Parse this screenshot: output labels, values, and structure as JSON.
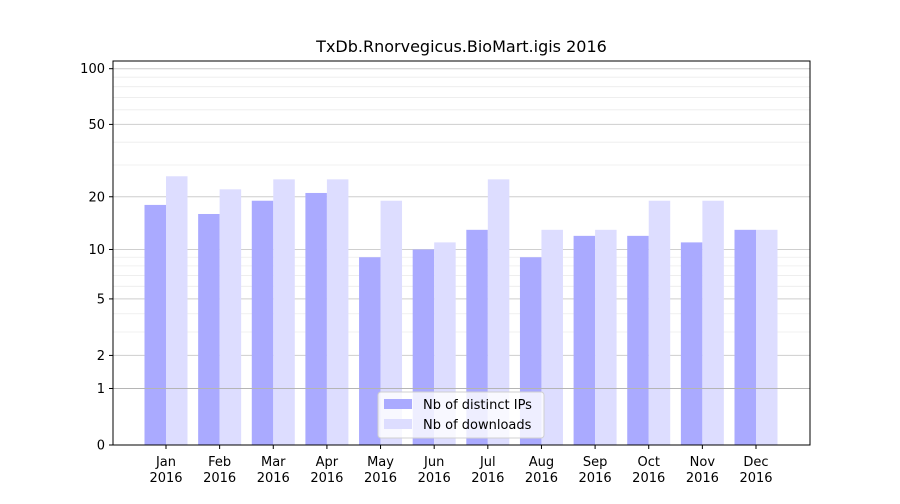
{
  "chart_data": {
    "type": "bar",
    "title": "TxDb.Rnorvegicus.BioMart.igis 2016",
    "xlabel": "",
    "ylabel": "",
    "y_scale": "log1p",
    "ylim": [
      0,
      110
    ],
    "y_ticks": [
      0,
      1,
      2,
      5,
      10,
      20,
      50,
      100
    ],
    "grid": true,
    "legend_position": "bottom-center",
    "categories": [
      [
        "Jan",
        "2016"
      ],
      [
        "Feb",
        "2016"
      ],
      [
        "Mar",
        "2016"
      ],
      [
        "Apr",
        "2016"
      ],
      [
        "May",
        "2016"
      ],
      [
        "Jun",
        "2016"
      ],
      [
        "Jul",
        "2016"
      ],
      [
        "Aug",
        "2016"
      ],
      [
        "Sep",
        "2016"
      ],
      [
        "Oct",
        "2016"
      ],
      [
        "Nov",
        "2016"
      ],
      [
        "Dec",
        "2016"
      ]
    ],
    "series": [
      {
        "name": "Nb of distinct IPs",
        "color": "#aaaaff",
        "values": [
          18,
          16,
          19,
          21,
          9,
          10,
          13,
          9,
          12,
          12,
          11,
          13
        ]
      },
      {
        "name": "Nb of downloads",
        "color": "#ddddff",
        "values": [
          26,
          22,
          25,
          25,
          19,
          11,
          25,
          13,
          13,
          19,
          19,
          13
        ]
      }
    ]
  }
}
